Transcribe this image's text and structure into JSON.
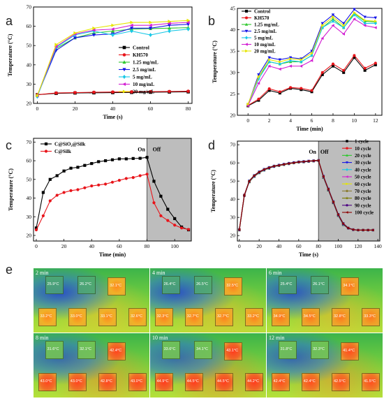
{
  "panels": {
    "a": "a",
    "b": "b",
    "c": "c",
    "d": "d",
    "e": "e"
  },
  "chart_data": [
    {
      "panel": "a",
      "type": "line",
      "xlabel": "Time (s)",
      "ylabel": "Temperature (°C)",
      "xlim": [
        -2,
        82
      ],
      "ylim": [
        20,
        70
      ],
      "xticks": [
        0,
        20,
        40,
        60,
        80
      ],
      "yticks": [
        20,
        30,
        40,
        50,
        60,
        70
      ],
      "legend_position": "middle-right",
      "x": [
        0,
        10,
        20,
        30,
        40,
        50,
        60,
        70,
        80
      ],
      "series": [
        {
          "name": "Control",
          "color": "#000000",
          "marker": "square",
          "values": [
            24.5,
            25.2,
            25.4,
            25.5,
            25.6,
            25.7,
            25.8,
            25.9,
            26.0
          ]
        },
        {
          "name": "KH570",
          "color": "#e8141a",
          "marker": "circle",
          "values": [
            24.5,
            25.4,
            25.6,
            25.8,
            25.9,
            26.0,
            26.1,
            26.2,
            26.3
          ]
        },
        {
          "name": "1.25 mg/mL",
          "color": "#2ec82e",
          "marker": "triangle-up",
          "values": [
            24.0,
            48.5,
            54.0,
            56.5,
            57.5,
            58.5,
            58.8,
            59.0,
            59.3
          ]
        },
        {
          "name": "2.5 mg/mL",
          "color": "#1414e6",
          "marker": "triangle-down",
          "values": [
            24.0,
            47.5,
            54.0,
            55.5,
            56.0,
            59.0,
            59.0,
            60.5,
            61.0
          ]
        },
        {
          "name": "5 mg/mL",
          "color": "#19c8e6",
          "marker": "diamond",
          "values": [
            23.5,
            49.0,
            55.5,
            57.5,
            55.5,
            57.5,
            55.5,
            57.5,
            58.5
          ]
        },
        {
          "name": "10 mg/mL",
          "color": "#d21ed2",
          "marker": "triangle-left",
          "values": [
            24.0,
            49.5,
            56.0,
            58.0,
            58.5,
            60.5,
            60.5,
            61.5,
            62.0
          ]
        },
        {
          "name": "20 mg/mL",
          "color": "#e6e600",
          "marker": "triangle-right",
          "values": [
            24.0,
            50.5,
            56.5,
            59.0,
            60.5,
            62.0,
            62.0,
            62.5,
            63.0
          ]
        }
      ]
    },
    {
      "panel": "b",
      "type": "line",
      "xlabel": "Time (min)",
      "ylabel": "Temperature (°C)",
      "xlim": [
        -1,
        12.6
      ],
      "ylim": [
        20,
        45
      ],
      "xticks": [
        0,
        2,
        4,
        6,
        8,
        10,
        12
      ],
      "yticks": [
        20,
        25,
        30,
        35,
        40,
        45
      ],
      "legend_position": "top-left",
      "x": [
        0,
        1,
        2,
        3,
        4,
        5,
        6,
        7,
        8,
        9,
        10,
        11,
        12
      ],
      "series": [
        {
          "name": "Control",
          "color": "#000000",
          "marker": "square",
          "values": [
            22.2,
            23.5,
            25.8,
            25.2,
            26.3,
            26.0,
            25.5,
            29.5,
            31.5,
            30.0,
            33.5,
            30.5,
            31.8
          ]
        },
        {
          "name": "KH570",
          "color": "#e8141a",
          "marker": "circle",
          "values": [
            22.3,
            23.8,
            26.2,
            25.5,
            26.5,
            26.3,
            25.8,
            30.0,
            32.0,
            30.5,
            34.0,
            31.0,
            32.2
          ]
        },
        {
          "name": "1.25 mg/mL",
          "color": "#2ec82e",
          "marker": "triangle-up",
          "values": [
            22.5,
            29.0,
            32.5,
            32.0,
            32.5,
            32.5,
            34.0,
            40.5,
            42.5,
            40.5,
            43.8,
            42.0,
            41.8
          ]
        },
        {
          "name": "2.5 mg/mL",
          "color": "#1414e6",
          "marker": "triangle-down",
          "values": [
            22.5,
            29.5,
            33.5,
            33.0,
            33.5,
            33.2,
            35.0,
            41.5,
            43.5,
            41.5,
            44.8,
            43.0,
            42.8
          ]
        },
        {
          "name": "5 mg/mL",
          "color": "#19c8e6",
          "marker": "diamond",
          "values": [
            22.4,
            28.5,
            32.5,
            32.0,
            32.8,
            32.5,
            34.0,
            40.5,
            42.0,
            40.5,
            43.5,
            41.5,
            41.5
          ]
        },
        {
          "name": "10 mg/mL",
          "color": "#d21ed2",
          "marker": "triangle-left",
          "values": [
            22.3,
            27.5,
            31.5,
            30.8,
            31.5,
            31.5,
            32.8,
            38.0,
            41.0,
            39.0,
            42.5,
            41.0,
            40.5
          ]
        },
        {
          "name": "20 mg/mL",
          "color": "#e6e600",
          "marker": "triangle-right",
          "values": [
            22.6,
            29.0,
            33.0,
            32.5,
            33.2,
            33.0,
            34.5,
            41.0,
            43.0,
            41.0,
            44.0,
            42.2,
            42.0
          ]
        }
      ]
    },
    {
      "panel": "c",
      "type": "line",
      "xlabel": "Time (min)",
      "ylabel": "Temperature (°C)",
      "xlim": [
        -2,
        112
      ],
      "ylim": [
        17,
        72
      ],
      "xticks": [
        0,
        20,
        40,
        60,
        80,
        100
      ],
      "yticks": [
        20,
        30,
        40,
        50,
        60,
        70
      ],
      "legend_position": "top-left",
      "shaded_region": {
        "from": 80,
        "to": 112,
        "color": "#bdbdbd"
      },
      "annotations": [
        {
          "text": "On",
          "x": 76,
          "y": 65
        },
        {
          "text": "Off",
          "x": 87,
          "y": 65
        }
      ],
      "series": [
        {
          "name": "C@SiO₂@Silk",
          "color": "#000000",
          "marker": "square",
          "x": [
            0,
            5,
            10,
            15,
            20,
            25,
            30,
            35,
            40,
            45,
            50,
            55,
            60,
            65,
            70,
            75,
            80,
            85,
            90,
            95,
            100,
            105,
            110
          ],
          "values": [
            24,
            43,
            50,
            52,
            54.5,
            56,
            56.5,
            57.5,
            58.5,
            59.5,
            60,
            60.5,
            61,
            61,
            61.2,
            61.3,
            61.8,
            49,
            41,
            34,
            29,
            24.5,
            23
          ]
        },
        {
          "name": "C@Silk",
          "color": "#e8141a",
          "marker": "circle",
          "x": [
            0,
            5,
            10,
            15,
            20,
            25,
            30,
            35,
            40,
            45,
            50,
            55,
            60,
            65,
            70,
            75,
            80,
            85,
            90,
            95,
            100,
            105,
            110
          ],
          "values": [
            23,
            30.5,
            38.5,
            41.5,
            43,
            44,
            44.5,
            45.5,
            46.5,
            47,
            47.5,
            48.5,
            49.5,
            50.5,
            51,
            52,
            52.8,
            37.5,
            30.5,
            28,
            25.5,
            24,
            23.2
          ]
        }
      ]
    },
    {
      "panel": "d",
      "type": "line",
      "xlabel": "Time (s)",
      "ylabel": "Temperature (°C)",
      "xlim": [
        -2,
        142
      ],
      "ylim": [
        17,
        72
      ],
      "xticks": [
        0,
        20,
        40,
        60,
        80,
        100,
        120,
        140
      ],
      "yticks": [
        20,
        30,
        40,
        50,
        60,
        70
      ],
      "legend_position": "right",
      "shaded_region": {
        "from": 80,
        "to": 142,
        "color": "#bdbdbd"
      },
      "annotations": [
        {
          "text": "On",
          "x": 74,
          "y": 65
        },
        {
          "text": "Off",
          "x": 86,
          "y": 65
        }
      ],
      "x": [
        0,
        5,
        10,
        15,
        20,
        25,
        30,
        35,
        40,
        45,
        50,
        55,
        60,
        65,
        70,
        75,
        80,
        85,
        90,
        95,
        100,
        105,
        110,
        115,
        120,
        125,
        130,
        135
      ],
      "series": [
        {
          "name": "1 cycle",
          "color": "#000000",
          "marker": "square",
          "values": [
            23,
            42,
            49.5,
            52.5,
            54.5,
            56,
            57,
            58,
            58.5,
            59,
            59.5,
            60,
            60.5,
            60.5,
            60.8,
            61,
            61.2,
            52,
            45,
            38,
            31,
            26,
            24,
            23.2,
            23,
            23,
            23,
            23
          ]
        },
        {
          "name": "10 cycle",
          "color": "#e8141a",
          "marker": "circle",
          "values": [
            23.5,
            42.5,
            50,
            53,
            55,
            56.5,
            57.5,
            58.3,
            58.8,
            59.3,
            59.8,
            60.2,
            60.6,
            60.8,
            61,
            61.2,
            61.4,
            52.5,
            45.5,
            38.5,
            31.5,
            26.5,
            24.2,
            23.3,
            23,
            23,
            23,
            23
          ]
        },
        {
          "name": "20 cycle",
          "color": "#2ec82e",
          "marker": "triangle-up",
          "values": [
            23.2,
            42,
            49.8,
            52.8,
            54.8,
            56.2,
            57.2,
            58,
            58.6,
            59.1,
            59.6,
            60,
            60.4,
            60.6,
            60.9,
            61,
            61.3,
            52.2,
            45.2,
            38.2,
            31.2,
            26.2,
            24.1,
            23.2,
            23,
            23,
            23,
            23
          ]
        },
        {
          "name": "30 cycle",
          "color": "#1414e6",
          "marker": "triangle-down",
          "values": [
            23.4,
            42.3,
            50.2,
            53.2,
            55.2,
            56.6,
            57.6,
            58.4,
            58.9,
            59.4,
            59.9,
            60.3,
            60.7,
            60.9,
            61.1,
            61.3,
            61.5,
            52.8,
            45.8,
            38.8,
            31.8,
            26.8,
            24.3,
            23.4,
            23,
            23,
            23,
            23
          ]
        },
        {
          "name": "40 cycle",
          "color": "#19c8e6",
          "marker": "diamond",
          "values": [
            23.1,
            41.8,
            49.6,
            52.6,
            54.6,
            56,
            57.1,
            57.9,
            58.5,
            59,
            59.5,
            59.9,
            60.3,
            60.5,
            60.8,
            61,
            61.2,
            52.1,
            45.1,
            38.1,
            31.1,
            26.1,
            24,
            23.2,
            23,
            23,
            23,
            23
          ]
        },
        {
          "name": "50 cycle",
          "color": "#d21ed2",
          "marker": "triangle-left",
          "values": [
            23.3,
            42.1,
            50,
            53,
            55,
            56.4,
            57.4,
            58.2,
            58.7,
            59.2,
            59.7,
            60.1,
            60.5,
            60.7,
            61,
            61.1,
            61.4,
            52.4,
            45.4,
            38.4,
            31.4,
            26.4,
            24.1,
            23.3,
            23,
            23,
            23,
            23
          ]
        },
        {
          "name": "60 cycle",
          "color": "#e6e600",
          "marker": "triangle-right",
          "values": [
            23,
            41.9,
            49.7,
            52.7,
            54.7,
            56.1,
            57.1,
            58,
            58.5,
            59,
            59.5,
            59.9,
            60.3,
            60.6,
            60.9,
            61,
            61.3,
            52.3,
            45.3,
            38.3,
            31.3,
            26.3,
            24,
            23.2,
            23,
            23,
            23,
            23
          ]
        },
        {
          "name": "70 cycle",
          "color": "#8b7d33",
          "marker": "hexagon",
          "values": [
            23.2,
            42,
            49.9,
            52.9,
            54.9,
            56.3,
            57.3,
            58.1,
            58.6,
            59.1,
            59.6,
            60,
            60.4,
            60.6,
            60.9,
            61.1,
            61.3,
            52.4,
            45.4,
            38.4,
            31.4,
            26.4,
            24.1,
            23.3,
            23,
            23,
            23,
            23
          ]
        },
        {
          "name": "80 cycle",
          "color": "#7a7a00",
          "marker": "star",
          "values": [
            23.4,
            42.2,
            50.1,
            53.1,
            55.1,
            56.5,
            57.5,
            58.3,
            58.8,
            59.3,
            59.8,
            60.2,
            60.6,
            60.8,
            61,
            61.2,
            61.5,
            52.6,
            45.6,
            38.6,
            31.6,
            26.6,
            24.2,
            23.3,
            23,
            23,
            23,
            23
          ]
        },
        {
          "name": "90 cycle",
          "color": "#4b0082",
          "marker": "pentagon",
          "values": [
            23.1,
            41.9,
            49.8,
            52.8,
            54.8,
            56.2,
            57.2,
            58,
            58.6,
            59.1,
            59.6,
            60,
            60.4,
            60.6,
            60.9,
            61,
            61.3,
            52.3,
            45.3,
            38.3,
            31.3,
            26.3,
            24,
            23.2,
            23,
            23,
            23,
            23
          ]
        },
        {
          "name": "100 cycle",
          "color": "#8b0000",
          "marker": "triangle-left",
          "values": [
            23.3,
            42.2,
            50,
            53,
            55,
            56.4,
            57.4,
            58.2,
            58.7,
            59.2,
            59.7,
            60.1,
            60.5,
            60.7,
            61,
            61.2,
            61.4,
            52.5,
            45.5,
            38.5,
            31.5,
            26.5,
            24.1,
            23.3,
            23,
            23,
            23,
            23
          ]
        }
      ]
    }
  ],
  "thermal": [
    {
      "label": "2 min",
      "temps": [
        "25.9°C",
        "26.2°C",
        "32.1°C",
        "33.2°C",
        "33.0°C",
        "33.1°C",
        "32.6°C"
      ],
      "heat": 0.15
    },
    {
      "label": "4 min",
      "temps": [
        "26.4°C",
        "26.5°C",
        "32.5°C",
        "32.3°C",
        "32.7°C",
        "32.7°C",
        "33.2°C"
      ],
      "heat": 0.25
    },
    {
      "label": "6 min",
      "temps": [
        "25.4°C",
        "26.1°C",
        "34.1°C",
        "34.9°C",
        "34.5°C",
        "32.8°C",
        "33.3°C"
      ],
      "heat": 0.35
    },
    {
      "label": "8 min",
      "temps": [
        "31.6°C",
        "32.1°C",
        "42.4°C",
        "43.0°C",
        "43.0°C",
        "42.8°C",
        "43.0°C"
      ],
      "heat": 0.9
    },
    {
      "label": "10 min",
      "temps": [
        "33.6°C",
        "34.1°C",
        "43.1°C",
        "44.9°C",
        "44.5°C",
        "44.5°C",
        "44.2°C"
      ],
      "heat": 1.0
    },
    {
      "label": "12 min",
      "temps": [
        "31.8°C",
        "32.3°C",
        "41.4°C",
        "42.4°C",
        "42.4°C",
        "42.5°C",
        "41.5°C"
      ],
      "heat": 0.8
    }
  ]
}
